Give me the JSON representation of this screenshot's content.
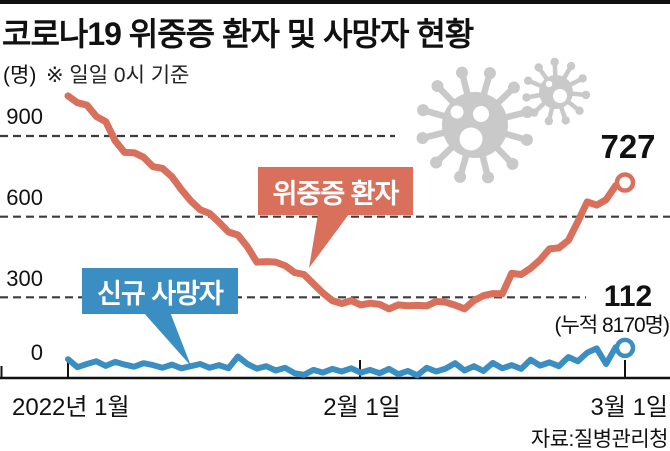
{
  "page": {
    "background": "#ffffff",
    "top_border_color": "#111111",
    "virus_icon_color": "#c9c9c9"
  },
  "chart_data": {
    "type": "line",
    "title": "코로나19 위중증 환자 및 사망자 현황",
    "unit_label": "(명)",
    "note": "※ 일일 0시 기준",
    "source": "자료:질병관리청",
    "x_axis": {
      "start": "2022-01-01",
      "end": "2022-03-01",
      "interval": "daily",
      "tick_labels": [
        "2022년 1월",
        "2월 1일",
        "3월 1일"
      ]
    },
    "y_axis": {
      "tick_values": [
        900,
        600,
        300,
        0
      ],
      "range": [
        0,
        1060
      ],
      "gridline_style": "dashed"
    },
    "legend_position": "inline-callouts",
    "series": [
      {
        "name": "위중증 환자",
        "color": "#d8705c",
        "end_value_label": "727",
        "values": [
          1049,
          1024,
          1015,
          973,
          953,
          882,
          839,
          838,
          821,
          786,
          780,
          749,
          701,
          659,
          626,
          612,
          579,
          543,
          532,
          488,
          431,
          433,
          431,
          418,
          392,
          385,
          350,
          316,
          288,
          277,
          288,
          272,
          278,
          274,
          257,
          272,
          269,
          270,
          268,
          285,
          282,
          271,
          257,
          288,
          306,
          314,
          313,
          389,
          385,
          408,
          439,
          480,
          484,
          512,
          581,
          655,
          643,
          663,
          715,
          727
        ]
      },
      {
        "name": "신규 사망자",
        "color": "#3b8ec2",
        "end_value_label": "112",
        "end_value_sublabel": "(누적 8170명)",
        "values": [
          70,
          40,
          52,
          62,
          45,
          60,
          50,
          42,
          55,
          48,
          38,
          50,
          36,
          44,
          52,
          38,
          48,
          36,
          80,
          52,
          35,
          44,
          28,
          38,
          18,
          12,
          30,
          20,
          34,
          24,
          36,
          20,
          30,
          18,
          34,
          14,
          26,
          10,
          38,
          24,
          35,
          55,
          28,
          44,
          26,
          56,
          36,
          48,
          34,
          68,
          46,
          58,
          44,
          78,
          62,
          94,
          110,
          52,
          114,
          112
        ]
      }
    ],
    "decorations": [
      "virus-icon-large",
      "virus-icon-small"
    ]
  }
}
